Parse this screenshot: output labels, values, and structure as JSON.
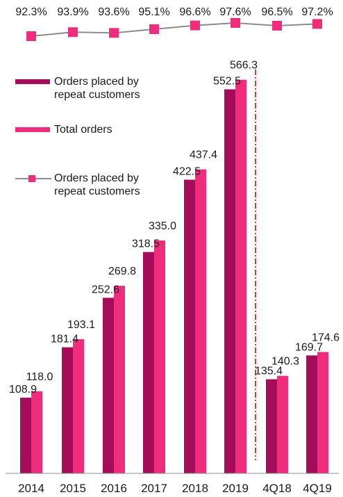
{
  "chart_data": {
    "type": "bar",
    "categories": [
      "2014",
      "2015",
      "2016",
      "2017",
      "2018",
      "2019",
      "4Q18",
      "4Q19"
    ],
    "series": [
      {
        "name": "Orders placed by repeat customers",
        "values": [
          108.9,
          181.4,
          252.6,
          318.5,
          422.5,
          552.5,
          135.4,
          169.7
        ],
        "color": "#a50d5a"
      },
      {
        "name": "Total orders",
        "values": [
          118.0,
          193.1,
          269.8,
          335.0,
          437.4,
          566.3,
          140.3,
          174.6
        ],
        "color": "#f02d7d"
      }
    ],
    "value_labels": {
      "Orders placed by repeat customers": [
        "108.9",
        "181.4",
        "252.6",
        "318.5",
        "422.5",
        "552.5",
        "135.4",
        "169.7"
      ],
      "Total orders": [
        "118.0",
        "193.1",
        "269.8",
        "335.0",
        "437.4",
        "566.3",
        "140.3",
        "174.6"
      ]
    },
    "line_series": {
      "name": "Orders placed by repeat customers",
      "values": [
        92.3,
        93.9,
        93.6,
        95.1,
        96.6,
        97.6,
        96.5,
        97.2
      ],
      "labels": [
        "92.3%",
        "93.9%",
        "93.6%",
        "95.1%",
        "96.6%",
        "97.6%",
        "96.5%",
        "97.2%"
      ],
      "unit": "%",
      "line_color": "#8c8c8c",
      "marker_color": "#f02d7d"
    },
    "separator": {
      "between": [
        "2019",
        "4Q18"
      ],
      "style": "dash-dot",
      "color": "#c00000"
    },
    "ylim": [
      0,
      600
    ],
    "legend": {
      "position": "left",
      "entries": [
        {
          "label": "Orders placed by repeat customers",
          "kind": "bar",
          "color": "#a50d5a"
        },
        {
          "label": "Total orders",
          "kind": "bar",
          "color": "#f02d7d"
        },
        {
          "label": "Orders placed by repeat customers",
          "kind": "line",
          "color": "#8c8c8c"
        }
      ]
    },
    "grid": false
  }
}
